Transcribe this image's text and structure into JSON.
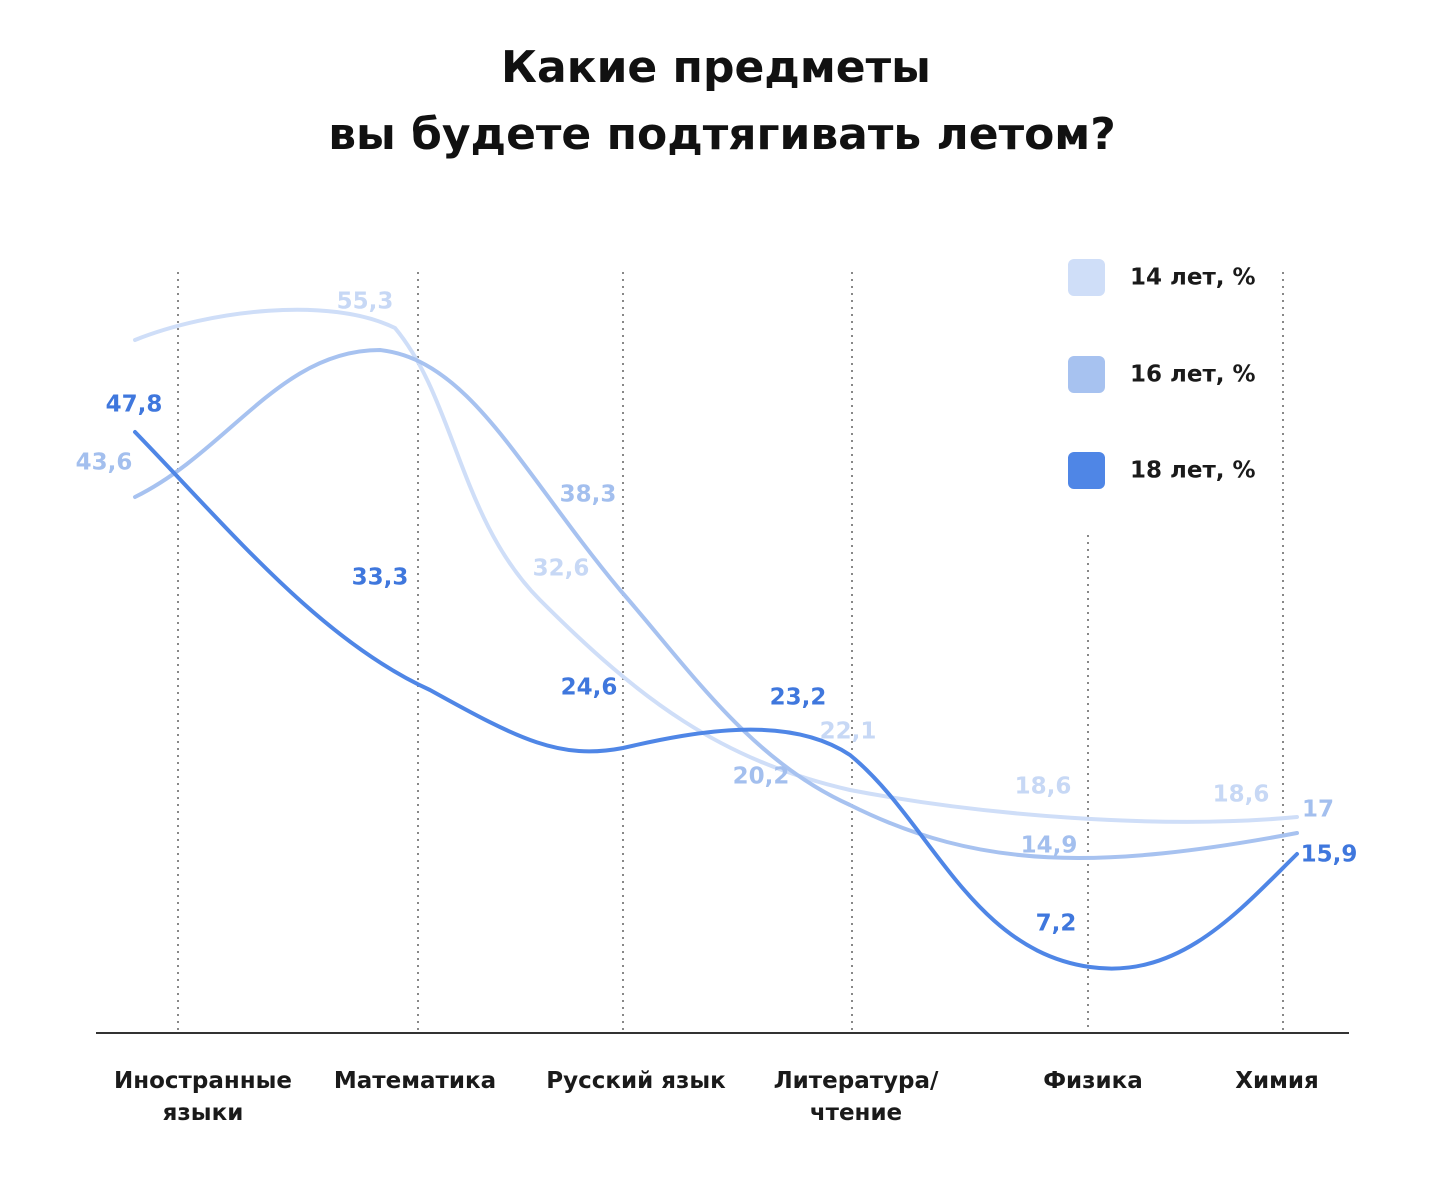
{
  "chart_data": {
    "type": "line",
    "title_lines": [
      "Какие предметы",
      "вы будете подтягивать летом?"
    ],
    "categories": [
      "Иностранные языки",
      "Математика",
      "Русский язык",
      "Литература/ чтение",
      "Физика",
      "Химия"
    ],
    "category_label_lines": [
      [
        "Иностранные",
        "языки"
      ],
      [
        "Математика"
      ],
      [
        "Русский язык"
      ],
      [
        "Литература/",
        "чтение"
      ],
      [
        "Физика"
      ],
      [
        "Химия"
      ]
    ],
    "series": [
      {
        "name": "14 лет, %",
        "color": "#cfdef8",
        "label_color": "#c7d8f5",
        "values": [
          null,
          55.3,
          32.6,
          22.1,
          18.6,
          18.6
        ],
        "labels": [
          "",
          "55,3",
          "32,6",
          "22,1",
          "18,6",
          "18,6"
        ]
      },
      {
        "name": "16 лет, %",
        "color": "#a7c2f0",
        "label_color": "#a3bfee",
        "values": [
          43.6,
          null,
          38.3,
          20.2,
          14.9,
          17
        ],
        "labels": [
          "43,6",
          "",
          "38,3",
          "20,2",
          "14,9",
          "17"
        ]
      },
      {
        "name": "18 лет, %",
        "color": "#4f86e6",
        "label_color": "#3f77dd",
        "values": [
          47.8,
          33.3,
          24.6,
          23.2,
          7.2,
          15.9
        ],
        "labels": [
          "47,8",
          "33,3",
          "24,6",
          "23,2",
          "7,2",
          "15,9"
        ]
      }
    ],
    "grid": "vertical dotted",
    "legend_position": "top-right"
  }
}
